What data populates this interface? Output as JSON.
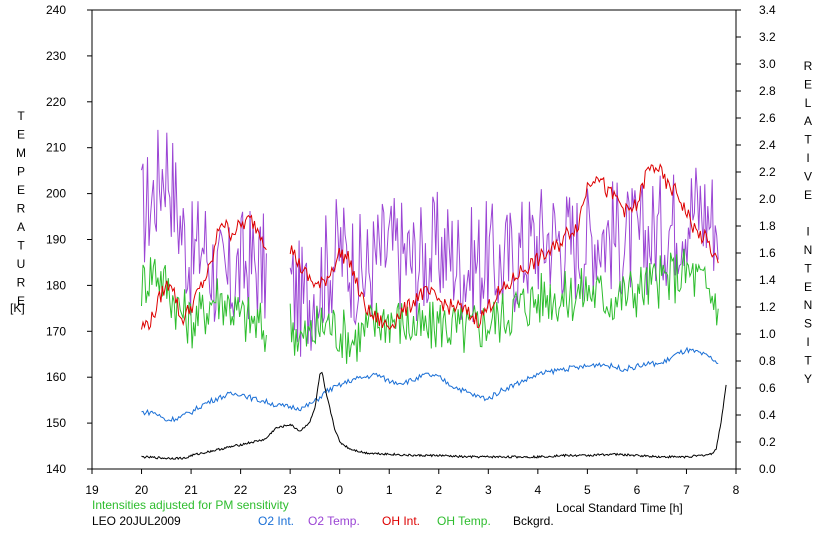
{
  "chart_data": {
    "type": "line",
    "left_axis": {
      "label": "TEMPERATURE",
      "unit": "[K]",
      "range": [
        140,
        240
      ],
      "ticks": [
        140,
        150,
        160,
        170,
        180,
        190,
        200,
        210,
        220,
        230,
        240
      ]
    },
    "right_axis": {
      "label": "RELATIVE INTENSITY",
      "range": [
        0.0,
        3.4
      ],
      "ticks": [
        "0.0",
        "0.2",
        "0.4",
        "0.6",
        "0.8",
        "1.0",
        "1.2",
        "1.4",
        "1.6",
        "1.8",
        "2.0",
        "2.2",
        "2.4",
        "2.6",
        "2.8",
        "3.0",
        "3.2",
        "3.4"
      ]
    },
    "x_axis": {
      "label": "Local Standard Time [h]",
      "range": [
        19,
        32
      ],
      "ticks": [
        19,
        20,
        21,
        22,
        23,
        24,
        25,
        26,
        27,
        28,
        29,
        30,
        31,
        32
      ],
      "tick_labels": [
        "19",
        "20",
        "21",
        "22",
        "23",
        "0",
        "1",
        "2",
        "3",
        "4",
        "5",
        "6",
        "7",
        "8"
      ]
    },
    "note": "Intensities adjusted for PM sensitivity",
    "station": "LEO 20JUL2009",
    "legend": {
      "placement": "bottom",
      "entries": [
        {
          "label": "O2 Int.",
          "color": "#1a6fd6"
        },
        {
          "label": "O2 Temp.",
          "color": "#9b45d4"
        },
        {
          "label": "OH Int.",
          "color": "#dd0000"
        },
        {
          "label": "OH Temp.",
          "color": "#2ebd2e"
        },
        {
          "label": "Bckgrd.",
          "color": "#000000"
        }
      ]
    },
    "series": [
      {
        "name": "O2 Temp.",
        "axis": "left",
        "color": "#9b45d4",
        "x": [
          20.0,
          20.25,
          20.5,
          20.75,
          21.0,
          21.25,
          21.5,
          21.75,
          22.0,
          22.25,
          22.5,
          23.0,
          23.25,
          23.5,
          23.75,
          24.0,
          24.25,
          24.5,
          24.75,
          25.0,
          25.25,
          25.5,
          25.75,
          26.0,
          26.25,
          26.5,
          26.75,
          27.0,
          27.25,
          27.5,
          27.75,
          28.0,
          28.25,
          28.5,
          28.75,
          29.0,
          29.25,
          29.5,
          29.75,
          30.0,
          30.25,
          30.5,
          30.75,
          31.0,
          31.25,
          31.5,
          31.65
        ],
        "y": [
          195,
          200,
          208,
          195,
          185,
          190,
          182,
          180,
          184,
          185,
          183,
          180,
          176,
          180,
          184,
          188,
          185,
          182,
          186,
          188,
          187,
          185,
          186,
          188,
          187,
          184,
          185,
          186,
          184,
          186,
          188,
          190,
          191,
          190,
          189,
          190,
          192,
          191,
          190,
          189,
          191,
          192,
          194,
          196,
          197,
          195,
          194
        ],
        "amplitude": 13
      },
      {
        "name": "OH Temp.",
        "axis": "left",
        "color": "#2ebd2e",
        "x": [
          20.0,
          20.25,
          20.5,
          20.75,
          21.0,
          21.25,
          21.5,
          21.75,
          22.0,
          22.25,
          22.5,
          23.0,
          23.25,
          23.5,
          23.75,
          24.0,
          24.25,
          24.5,
          24.75,
          25.0,
          25.25,
          25.5,
          25.75,
          26.0,
          26.25,
          26.5,
          26.75,
          27.0,
          27.25,
          27.5,
          27.75,
          28.0,
          28.25,
          28.5,
          28.75,
          29.0,
          29.25,
          29.5,
          29.75,
          30.0,
          30.25,
          30.5,
          30.75,
          31.0,
          31.25,
          31.5,
          31.65
        ],
        "y": [
          180,
          184,
          180,
          175,
          172,
          174,
          178,
          176,
          173,
          172,
          170,
          172,
          168,
          170,
          172,
          170,
          168,
          170,
          172,
          173,
          172,
          171,
          170,
          172,
          171,
          170,
          171,
          172,
          173,
          175,
          176,
          177,
          178,
          177,
          178,
          179,
          178,
          177,
          178,
          179,
          180,
          181,
          182,
          183,
          181,
          178,
          176
        ],
        "amplitude": 6
      },
      {
        "name": "OH Int.",
        "axis": "right",
        "color": "#dd0000",
        "x": [
          20.0,
          20.2,
          20.4,
          20.6,
          20.8,
          21.0,
          21.2,
          21.4,
          21.6,
          21.8,
          22.0,
          22.2,
          22.4,
          22.6,
          23.0,
          23.2,
          23.4,
          23.6,
          23.8,
          24.0,
          24.2,
          24.4,
          24.6,
          24.8,
          25.0,
          25.2,
          25.4,
          25.6,
          25.8,
          26.0,
          26.2,
          26.4,
          26.6,
          26.8,
          27.0,
          27.2,
          27.4,
          27.6,
          27.8,
          28.0,
          28.2,
          28.4,
          28.6,
          28.8,
          29.0,
          29.2,
          29.4,
          29.6,
          29.8,
          30.0,
          30.2,
          30.4,
          30.6,
          30.8,
          31.0,
          31.2,
          31.4,
          31.6,
          31.65
        ],
        "y": [
          1.05,
          1.1,
          1.3,
          1.4,
          1.1,
          1.2,
          1.35,
          1.5,
          1.85,
          1.75,
          1.8,
          1.85,
          1.75,
          1.6,
          1.65,
          1.5,
          1.4,
          1.35,
          1.45,
          1.6,
          1.55,
          1.3,
          1.15,
          1.1,
          1.05,
          1.15,
          1.2,
          1.3,
          1.3,
          1.25,
          1.2,
          1.2,
          1.15,
          1.1,
          1.2,
          1.3,
          1.35,
          1.45,
          1.5,
          1.55,
          1.6,
          1.65,
          1.75,
          1.8,
          2.1,
          2.2,
          2.05,
          2.0,
          1.9,
          1.95,
          2.2,
          2.25,
          2.1,
          2.05,
          1.9,
          1.75,
          1.7,
          1.55,
          1.5
        ],
        "amplitude": 0.06
      },
      {
        "name": "O2 Int.",
        "axis": "right",
        "color": "#1a6fd6",
        "x": [
          20.0,
          20.25,
          20.5,
          20.75,
          21.0,
          21.25,
          21.5,
          21.75,
          22.0,
          22.25,
          22.5,
          22.75,
          23.0,
          23.25,
          23.5,
          23.75,
          24.0,
          24.25,
          24.5,
          24.75,
          25.0,
          25.25,
          25.5,
          25.75,
          26.0,
          26.25,
          26.5,
          26.75,
          27.0,
          27.25,
          27.5,
          27.75,
          28.0,
          28.25,
          28.5,
          28.75,
          29.0,
          29.25,
          29.5,
          29.75,
          30.0,
          30.25,
          30.5,
          30.75,
          31.0,
          31.25,
          31.5,
          31.65
        ],
        "y": [
          0.42,
          0.42,
          0.36,
          0.38,
          0.42,
          0.48,
          0.52,
          0.55,
          0.56,
          0.52,
          0.5,
          0.47,
          0.46,
          0.45,
          0.5,
          0.58,
          0.62,
          0.66,
          0.68,
          0.7,
          0.65,
          0.64,
          0.66,
          0.7,
          0.68,
          0.62,
          0.58,
          0.54,
          0.52,
          0.58,
          0.62,
          0.66,
          0.7,
          0.72,
          0.74,
          0.75,
          0.76,
          0.78,
          0.76,
          0.74,
          0.76,
          0.78,
          0.78,
          0.84,
          0.88,
          0.86,
          0.82,
          0.78
        ],
        "amplitude": 0.02
      },
      {
        "name": "Bckgrd.",
        "axis": "right",
        "color": "#000000",
        "x": [
          20.0,
          20.5,
          20.9,
          21.0,
          21.5,
          22.0,
          22.5,
          22.7,
          23.0,
          23.2,
          23.4,
          23.5,
          23.6,
          23.65,
          23.7,
          23.8,
          23.9,
          24.0,
          24.2,
          24.5,
          25.0,
          25.5,
          26.0,
          26.5,
          27.0,
          27.5,
          28.0,
          28.5,
          29.0,
          29.5,
          30.0,
          30.5,
          31.0,
          31.3,
          31.5,
          31.6,
          31.7,
          31.8
        ],
        "y": [
          0.09,
          0.08,
          0.08,
          0.1,
          0.14,
          0.18,
          0.22,
          0.3,
          0.33,
          0.28,
          0.35,
          0.45,
          0.7,
          0.71,
          0.6,
          0.45,
          0.3,
          0.2,
          0.15,
          0.12,
          0.11,
          0.1,
          0.1,
          0.09,
          0.09,
          0.09,
          0.09,
          0.1,
          0.1,
          0.11,
          0.1,
          0.09,
          0.09,
          0.1,
          0.11,
          0.15,
          0.35,
          0.62
        ],
        "amplitude": 0.008
      }
    ]
  }
}
